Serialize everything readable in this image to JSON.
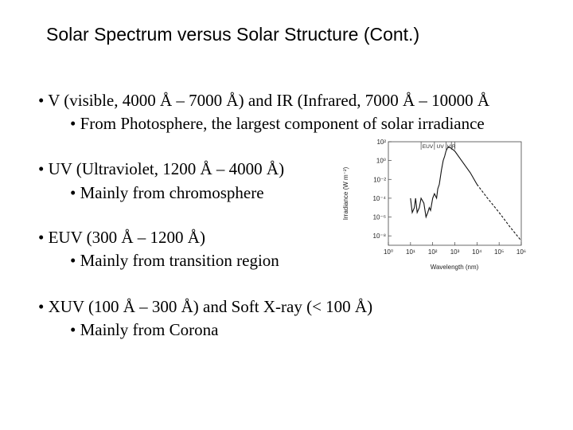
{
  "slide": {
    "title": "Solar Spectrum versus Solar Structure (Cont.)",
    "bullets": [
      {
        "text": "• V (visible, 4000 Å – 7000 Å) and IR (Infrared, 7000 Å – 10000 Å",
        "sub": "• From Photosphere, the largest component of solar irradiance"
      },
      {
        "text": "• UV (Ultraviolet, 1200 Å – 4000 Å)",
        "sub": "• Mainly from chromosphere"
      },
      {
        "text": "• EUV (300 Å – 1200 Å)",
        "sub": "• Mainly from transition region"
      },
      {
        "text": "• XUV (100 Å – 300 Å) and Soft X-ray (< 100 Å)",
        "sub": "• Mainly from Corona"
      }
    ]
  },
  "chart_data": {
    "type": "line",
    "xlabel": "Wavelength (nm)",
    "ylabel": "Irradiance (W m⁻²)",
    "x_scale": "log",
    "y_scale": "log",
    "xlim": [
      1,
      1000000
    ],
    "ylim": [
      1e-09,
      100
    ],
    "x_ticks": [
      "10⁰",
      "10¹",
      "10²",
      "10³",
      "10⁴",
      "10⁵",
      "10⁶"
    ],
    "y_ticks": [
      "10²",
      "10⁰",
      "10⁻²",
      "10⁻⁴",
      "10⁻⁶",
      "10⁻⁸"
    ],
    "band_labels": [
      "EUV",
      "UV",
      "V",
      "IR"
    ],
    "band_edges": [
      30,
      120,
      400,
      700,
      1000
    ],
    "series": [
      {
        "line_style": "solid",
        "x": [
          10,
          12,
          15,
          17,
          20,
          25,
          30,
          40,
          50,
          60,
          70,
          80,
          100,
          120,
          150,
          170,
          200,
          250,
          300,
          350,
          400,
          500,
          700,
          1000,
          2000,
          5000,
          10000
        ],
        "y": [
          0.0001,
          3e-06,
          1e-05,
          0.0001,
          3e-06,
          1e-05,
          0.0001,
          3e-05,
          1e-06,
          3e-06,
          1e-05,
          5e-06,
          0.0001,
          0.0003,
          0.0001,
          0.001,
          0.003,
          0.1,
          1,
          3,
          10,
          30,
          20,
          10,
          1,
          0.05,
          0.003
        ]
      },
      {
        "line_style": "dashed",
        "x": [
          10000,
          30000,
          100000,
          300000,
          1000000
        ],
        "y": [
          0.003,
          0.0001,
          3e-06,
          1e-07,
          3e-09
        ]
      }
    ]
  }
}
